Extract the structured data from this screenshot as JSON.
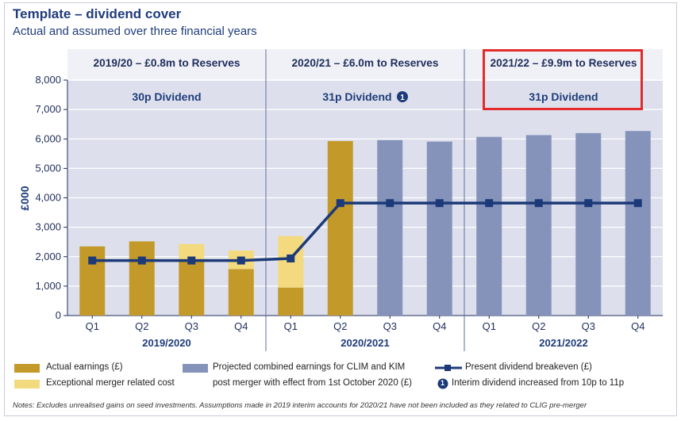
{
  "header": {
    "title": "Template – dividend cover",
    "subtitle": "Actual and assumed over three financial years"
  },
  "periods": [
    {
      "label": "2019/20 – £0.8m to Reserves",
      "dividend": "30p Dividend",
      "year": "2019/2020"
    },
    {
      "label": "2020/21 – £6.0m to Reserves",
      "dividend": "31p Dividend",
      "dividend_marker": "1",
      "year": "2020/2021"
    },
    {
      "label": "2021/22 – £9.9m to Reserves",
      "dividend": "31p Dividend",
      "year": "2021/2022"
    }
  ],
  "chart_data": {
    "type": "bar",
    "ylabel": "£000",
    "ylim": [
      0,
      8000
    ],
    "yticks": [
      "0",
      "1,000",
      "2,000",
      "3,000",
      "4,000",
      "5,000",
      "6,000",
      "7,000",
      "8,000"
    ],
    "categories": [
      "Q1",
      "Q2",
      "Q3",
      "Q4",
      "Q1",
      "Q2",
      "Q3",
      "Q4",
      "Q1",
      "Q2",
      "Q3",
      "Q4"
    ],
    "series": [
      {
        "name": "Actual earnings (£)",
        "color": "#c39a2a",
        "values": [
          2350,
          2520,
          1880,
          1580,
          950,
          5930,
          0,
          0,
          0,
          0,
          0,
          0
        ]
      },
      {
        "name": "Exceptional merger related cost",
        "color": "#f3da7e",
        "values": [
          0,
          0,
          550,
          630,
          1750,
          0,
          0,
          0,
          0,
          0,
          0,
          0
        ]
      },
      {
        "name": "Projected combined earnings for CLIM and KIM post merger with effect from 1st October 2020 (£)",
        "color": "#8593bb",
        "values": [
          0,
          0,
          0,
          0,
          0,
          0,
          5960,
          5910,
          6070,
          6130,
          6200,
          6270
        ]
      },
      {
        "name": "Present dividend breakeven (£)",
        "type": "line",
        "color": "#1c3a78",
        "values": [
          1870,
          1870,
          1870,
          1870,
          1940,
          3820,
          3820,
          3820,
          3820,
          3820,
          3820,
          3820
        ]
      }
    ],
    "grid": true
  },
  "legend": {
    "actual": "Actual earnings (£)",
    "exceptional": "Exceptional merger related cost",
    "projected_line1": "Projected combined earnings for CLIM and KIM",
    "projected_line2": "post merger with effect from 1st October 2020 (£)",
    "breakeven": "Present dividend breakeven (£)",
    "interim_marker": "1",
    "interim": "Interim dividend increased from 10p to 11p"
  },
  "notes": "Notes: Excludes unrealised gains on seed investments. Assumptions made in 2019 interim accounts for 2020/21 have not been included as they related to CLIG pre-merger",
  "colors": {
    "actual": "#c39a2a",
    "exceptional": "#f3da7e",
    "projected": "#8593bb",
    "line": "#1c3a78",
    "highlight": "#e32b2b",
    "band": "#dde0ec"
  }
}
